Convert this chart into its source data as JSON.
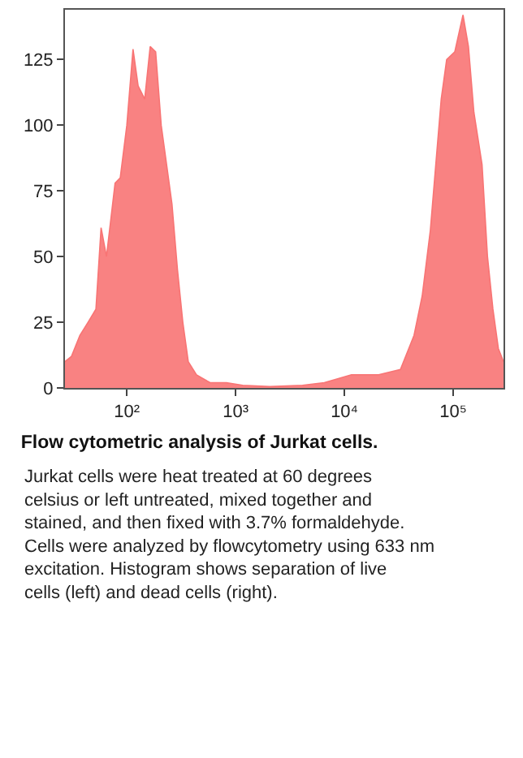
{
  "chart_data": {
    "type": "area",
    "title": "Flow cytometric analysis of Jurkat cells.",
    "annotations": [
      "Jurkat cells were heat treated at 60 degrees celsius or left untreated, mixed together and stained, and then fixed with 3.7% formaldehyde. Cells were analyzed by flowcytometry using 633 nm excitation. Histogram shows separation of live cells (left) and dead cells (right)."
    ],
    "log": "x",
    "xlim": [
      27,
      290000
    ],
    "ylim": [
      0,
      144
    ],
    "xticks": [
      {
        "value": 100,
        "label": "10²"
      },
      {
        "value": 1000,
        "label": "10³"
      },
      {
        "value": 10000,
        "label": "10⁴"
      },
      {
        "value": 100000,
        "label": "10⁵"
      }
    ],
    "yticks": [
      0,
      25,
      50,
      75,
      100,
      125
    ],
    "series": [
      {
        "color": "#f87474",
        "x": [
          27,
          31,
          37,
          44,
          52,
          58,
          65,
          78,
          87,
          100,
          114,
          127,
          146,
          164,
          184,
          207,
          232,
          260,
          292,
          327,
          367,
          437,
          582,
          822,
          1161,
          2065,
          4121,
          6531,
          11614,
          20654,
          32734,
          43652,
          51880,
          61660,
          69183,
          77625,
          87096,
          103514,
          123027,
          138038,
          154882,
          184077,
          206538,
          231739,
          260016,
          290000
        ],
        "values": [
          10,
          12,
          20,
          25,
          30,
          61,
          50,
          78,
          80,
          100,
          129,
          115,
          110,
          130,
          128,
          100,
          85,
          70,
          45,
          25,
          10,
          5,
          2,
          2,
          1,
          0.5,
          1,
          2,
          5,
          5,
          7,
          20,
          35,
          60,
          85,
          110,
          125,
          128,
          142,
          130,
          105,
          85,
          50,
          30,
          15,
          10
        ]
      }
    ]
  }
}
